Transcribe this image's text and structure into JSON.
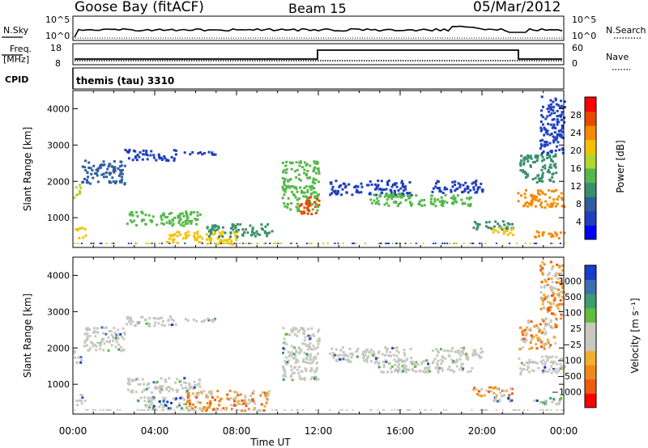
{
  "header": {
    "station": "Goose Bay (fitACF)",
    "beam": "Beam 15",
    "date": "05/Mar/2012"
  },
  "nsky_panel": {
    "left_label": "N.Sky",
    "right_label": "N.Search",
    "left_ticks": [
      "10^5",
      "10^0"
    ],
    "right_ticks": [
      "10^5",
      "10^0"
    ]
  },
  "freq_panel": {
    "left_label_1": "Freq.",
    "left_label_2": "[MHz]",
    "right_label": "Nave",
    "left_ticks": [
      "18",
      "8"
    ],
    "right_ticks": [
      "60",
      "0"
    ]
  },
  "cpid_panel": {
    "left_label": "CPID",
    "program": "themis (tau) 3310"
  },
  "colors": {
    "power": [
      "#0000ff",
      "#1f3fbf",
      "#2e5e9e",
      "#3a8f6a",
      "#55b84a",
      "#b0d630",
      "#f2c200",
      "#f58a00",
      "#e64a00",
      "#ff0000"
    ],
    "velocity_pos": [
      "#1a3ccc",
      "#3c6fb0",
      "#3a9e6e",
      "#5fbf3a"
    ],
    "velocity_grey": "#c8c8c0",
    "velocity_neg": [
      "#f0b030",
      "#f08a1a",
      "#ee5a10",
      "#ff0000"
    ]
  },
  "chart_data": [
    {
      "type": "heatmap",
      "name": "power",
      "ylabel": "Slant Range [km]",
      "colorbar_label": "Power [dB]",
      "colorbar_ticks": [
        "28",
        "24",
        "20",
        "16",
        "12",
        "8",
        "4"
      ],
      "yticks": [
        "4000",
        "3000",
        "2000",
        "1000"
      ],
      "ylim": [
        180,
        4500
      ],
      "xlim_hours": [
        0,
        24
      ],
      "bands": [
        {
          "t0": 0.0,
          "t1": 0.4,
          "r0": 1550,
          "r1": 1950,
          "v": 5
        },
        {
          "t0": 0.4,
          "t1": 2.5,
          "r0": 1950,
          "r1": 2600,
          "v": 2
        },
        {
          "t0": 2.5,
          "t1": 5.0,
          "r0": 2600,
          "r1": 2900,
          "v": 1
        },
        {
          "t0": 5.0,
          "t1": 7.0,
          "r0": 2750,
          "r1": 2850,
          "v": 1
        },
        {
          "t0": 0.1,
          "t1": 0.6,
          "r0": 450,
          "r1": 750,
          "v": 6
        },
        {
          "t0": 2.6,
          "t1": 6.2,
          "r0": 800,
          "r1": 1200,
          "v": 4
        },
        {
          "t0": 4.5,
          "t1": 8.0,
          "r0": 300,
          "r1": 650,
          "v": 6
        },
        {
          "t0": 6.5,
          "t1": 9.7,
          "r0": 500,
          "r1": 850,
          "v": 3
        },
        {
          "t0": 10.2,
          "t1": 12.0,
          "r0": 1200,
          "r1": 2600,
          "v": 4
        },
        {
          "t0": 11.0,
          "t1": 12.0,
          "r0": 1100,
          "r1": 1600,
          "v": 8
        },
        {
          "t0": 12.5,
          "t1": 16.5,
          "r0": 1650,
          "r1": 2050,
          "v": 1
        },
        {
          "t0": 14.5,
          "t1": 19.5,
          "r0": 1350,
          "r1": 1700,
          "v": 4
        },
        {
          "t0": 17.5,
          "t1": 20.0,
          "r0": 1700,
          "r1": 2050,
          "v": 1
        },
        {
          "t0": 19.5,
          "t1": 21.5,
          "r0": 700,
          "r1": 950,
          "v": 3
        },
        {
          "t0": 20.5,
          "t1": 21.6,
          "r0": 550,
          "r1": 750,
          "v": 6
        },
        {
          "t0": 21.7,
          "t1": 24.0,
          "r0": 1300,
          "r1": 1800,
          "v": 7
        },
        {
          "t0": 21.8,
          "t1": 23.6,
          "r0": 2000,
          "r1": 2800,
          "v": 3
        },
        {
          "t0": 22.5,
          "t1": 24.0,
          "r0": 450,
          "r1": 650,
          "v": 7
        },
        {
          "t0": 22.8,
          "t1": 24.0,
          "r0": 2800,
          "r1": 4400,
          "v": 1
        }
      ]
    },
    {
      "type": "heatmap",
      "name": "velocity",
      "ylabel": "Slant Range [km]",
      "colorbar_label": "Velocity [m s⁻¹]",
      "colorbar_ticks": [
        "1000",
        "500",
        "100",
        "25",
        "−25",
        "−100",
        "−500",
        "−1000"
      ],
      "yticks": [
        "4000",
        "3000",
        "2000",
        "1000"
      ],
      "ylim": [
        180,
        4500
      ],
      "xlim_hours": [
        0,
        24
      ],
      "bands": [
        {
          "t0": 0.0,
          "t1": 0.4,
          "r0": 1550,
          "r1": 1950,
          "v": "g"
        },
        {
          "t0": 0.4,
          "t1": 2.5,
          "r0": 1950,
          "r1": 2600,
          "v": "g"
        },
        {
          "t0": 2.5,
          "t1": 5.0,
          "r0": 2600,
          "r1": 2900,
          "v": "g"
        },
        {
          "t0": 5.0,
          "t1": 7.0,
          "r0": 2750,
          "r1": 2850,
          "v": "g"
        },
        {
          "t0": 0.1,
          "t1": 0.6,
          "r0": 450,
          "r1": 750,
          "v": "g"
        },
        {
          "t0": 2.6,
          "t1": 6.2,
          "r0": 800,
          "r1": 1200,
          "v": "g"
        },
        {
          "t0": 3.0,
          "t1": 5.5,
          "r0": 350,
          "r1": 700,
          "v": "p"
        },
        {
          "t0": 5.5,
          "t1": 9.7,
          "r0": 300,
          "r1": 850,
          "v": "n"
        },
        {
          "t0": 10.2,
          "t1": 12.0,
          "r0": 1150,
          "r1": 2600,
          "v": "g"
        },
        {
          "t0": 12.5,
          "t1": 16.5,
          "r0": 1650,
          "r1": 2050,
          "v": "g"
        },
        {
          "t0": 14.5,
          "t1": 19.5,
          "r0": 1350,
          "r1": 1700,
          "v": "g"
        },
        {
          "t0": 17.5,
          "t1": 20.0,
          "r0": 1700,
          "r1": 2050,
          "v": "g"
        },
        {
          "t0": 19.5,
          "t1": 21.5,
          "r0": 700,
          "r1": 950,
          "v": "n"
        },
        {
          "t0": 20.5,
          "t1": 21.6,
          "r0": 550,
          "r1": 750,
          "v": "p"
        },
        {
          "t0": 21.7,
          "t1": 24.0,
          "r0": 1300,
          "r1": 1800,
          "v": "g"
        },
        {
          "t0": 21.8,
          "t1": 23.6,
          "r0": 2000,
          "r1": 2800,
          "v": "n"
        },
        {
          "t0": 22.5,
          "t1": 24.0,
          "r0": 450,
          "r1": 650,
          "v": "p"
        },
        {
          "t0": 22.8,
          "t1": 24.0,
          "r0": 2800,
          "r1": 4400,
          "v": "n"
        }
      ]
    }
  ],
  "time_axis": {
    "label": "Time UT",
    "ticks": [
      "00:00",
      "04:00",
      "08:00",
      "12:00",
      "16:00",
      "20:00",
      "00:00"
    ]
  }
}
